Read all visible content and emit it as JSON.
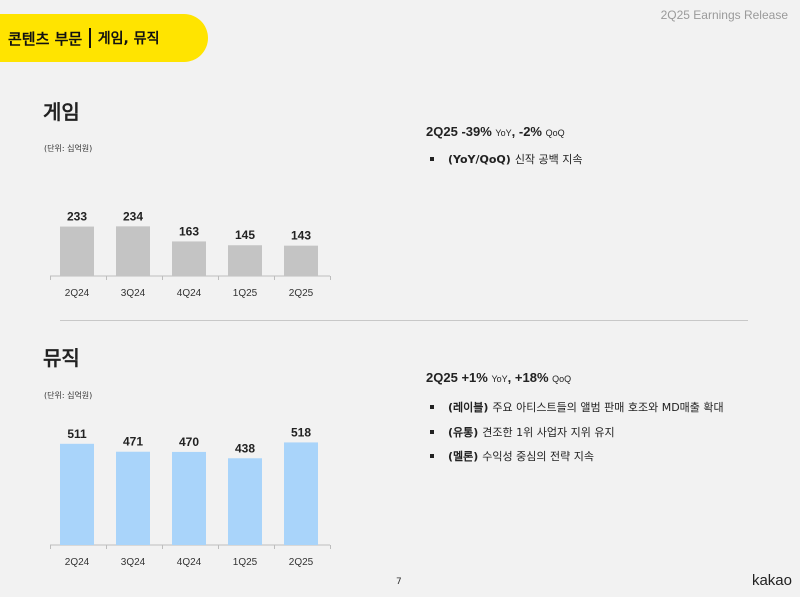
{
  "header": {
    "section": "콘텐츠 부문",
    "subsection": "게임, 뮤직",
    "release": "2Q25 Earnings Release"
  },
  "game": {
    "title": "게임",
    "unit": "(단위: 십억원)",
    "kpi": {
      "period": "2Q25",
      "yoy": "-39%",
      "yoy_label": "YoY",
      "qoq": "-2%",
      "qoq_label": "QoQ"
    },
    "bullets": [
      {
        "tag": "(YoY/QoQ)",
        "text": "신작 공백 지속"
      }
    ]
  },
  "music": {
    "title": "뮤직",
    "unit": "(단위: 십억원)",
    "kpi": {
      "period": "2Q25",
      "yoy": "+1%",
      "yoy_label": "YoY",
      "qoq": "+18%",
      "qoq_label": "QoQ"
    },
    "bullets": [
      {
        "tag": "(레이블)",
        "text": "주요 아티스트들의 앨범 판매 호조와 MD매출 확대"
      },
      {
        "tag": "(유통)",
        "text": "견조한 1위 사업자 지위 유지"
      },
      {
        "tag": "(멜론)",
        "text": "수익성 중심의 전략 지속"
      }
    ]
  },
  "footer": {
    "page": "7",
    "logo": "kakao"
  },
  "chart_data": [
    {
      "type": "bar",
      "categories": [
        "2Q24",
        "3Q24",
        "4Q24",
        "1Q25",
        "2Q25"
      ],
      "values": [
        233,
        234,
        163,
        145,
        143
      ],
      "color": "#c4c4c4",
      "ylim": [
        0,
        330
      ]
    },
    {
      "type": "bar",
      "categories": [
        "2Q24",
        "3Q24",
        "4Q24",
        "1Q25",
        "2Q25"
      ],
      "values": [
        511,
        471,
        470,
        438,
        518
      ],
      "color": "#a9d4fa",
      "ylim": [
        0,
        510
      ]
    }
  ]
}
